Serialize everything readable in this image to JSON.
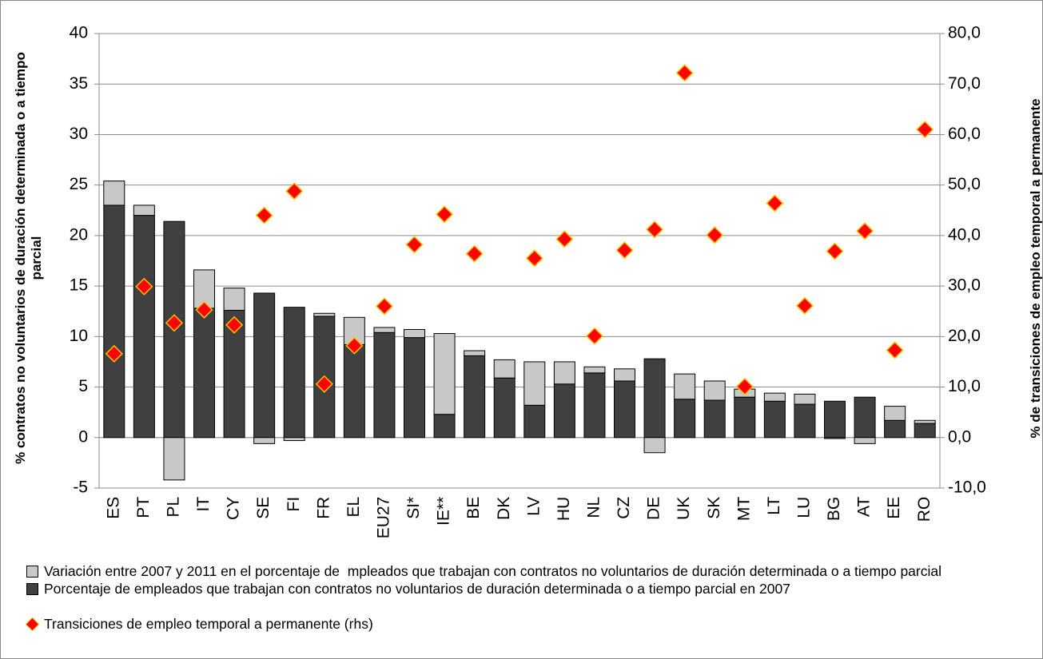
{
  "chart_data": {
    "type": "bar",
    "y_label": "% contratos no voluntarios de duración determinada o a tiempo parcial",
    "y2_label": "% de transiciones de empleo temporal a permanente",
    "categories": [
      "ES",
      "PT",
      "PL",
      "IT",
      "CY",
      "SE",
      "FI",
      "FR",
      "EL",
      "EU27",
      "SI*",
      "IE**",
      "BE",
      "DK",
      "LV",
      "HU",
      "NL",
      "CZ",
      "DE",
      "UK",
      "SK",
      "MT",
      "LT",
      "LU",
      "BG",
      "AT",
      "EE",
      "RO"
    ],
    "series": [
      {
        "name": "Variación entre 2007 y 2011 en el porcentaje de  mpleados que trabajan con contratos no voluntarios de duración determinada o a tiempo parcial",
        "type": "bar",
        "color": "#c8c8c8",
        "values": [
          2.4,
          1.0,
          -4.2,
          3.8,
          2.2,
          -0.6,
          -0.3,
          0.3,
          2.7,
          0.5,
          0.8,
          8.0,
          0.5,
          1.8,
          4.3,
          2.2,
          0.6,
          1.2,
          -1.5,
          2.5,
          1.9,
          0.8,
          0.8,
          1.0,
          -0.1,
          -0.6,
          1.4,
          0.3
        ]
      },
      {
        "name": "Porcentaje de empleados que trabajan con contratos no voluntarios de duración determinada o a tiempo parcial en 2007",
        "type": "bar",
        "color": "#404040",
        "values": [
          23.0,
          22.0,
          21.4,
          12.8,
          12.6,
          14.3,
          12.9,
          12.0,
          9.2,
          10.4,
          9.9,
          2.3,
          8.1,
          5.9,
          3.2,
          5.3,
          6.4,
          5.6,
          7.8,
          3.8,
          3.7,
          4.0,
          3.6,
          3.3,
          3.6,
          4.0,
          1.7,
          1.4
        ]
      },
      {
        "name": "Transiciones de empleo temporal a permanente (rhs)",
        "type": "scatter",
        "axis": "y2",
        "color": "#ff0000",
        "values": [
          16.6,
          29.9,
          22.7,
          25.3,
          22.3,
          44.0,
          48.8,
          10.6,
          18.2,
          26.0,
          38.2,
          44.2,
          36.4,
          null,
          35.5,
          39.3,
          20.1,
          37.1,
          41.2,
          72.2,
          40.1,
          10.1,
          46.4,
          26.1,
          36.9,
          40.9,
          17.3,
          61.0
        ]
      }
    ],
    "ylim": [
      -5,
      40
    ],
    "yticks": [
      -5,
      0,
      5,
      10,
      15,
      20,
      25,
      30,
      35,
      40
    ],
    "y2lim": [
      -10,
      80
    ],
    "y2ticks": [
      {
        "value": -10,
        "label": "-10,0"
      },
      {
        "value": 0,
        "label": "0,0"
      },
      {
        "value": 10,
        "label": "10,0"
      },
      {
        "value": 20,
        "label": "20,0"
      },
      {
        "value": 30,
        "label": "30,0"
      },
      {
        "value": 40,
        "label": "40,0"
      },
      {
        "value": 50,
        "label": "50,0"
      },
      {
        "value": 60,
        "label": "60,0"
      },
      {
        "value": 70,
        "label": "70,0"
      },
      {
        "value": 80,
        "label": "80,0"
      }
    ],
    "grid": true
  }
}
